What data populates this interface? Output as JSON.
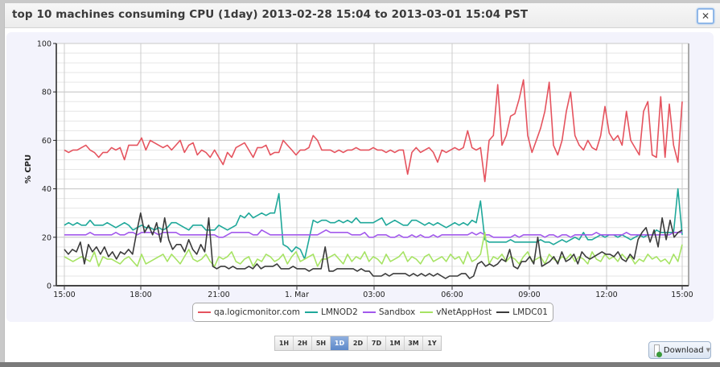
{
  "dialog": {
    "title": "top 10 machines consuming CPU (1day) 2013-02-28 15:04 to 2013-03-01 15:04 PST",
    "close_label": "✕"
  },
  "chart_data": {
    "type": "line",
    "title": "top 10 machines consuming CPU (1day) 2013-02-28 15:04 to 2013-03-01 15:04 PST",
    "xlabel": "",
    "ylabel": "% CPU",
    "ylim": [
      0,
      100
    ],
    "yticks": [
      0,
      20,
      40,
      60,
      80,
      100
    ],
    "xticks": [
      "15:00",
      "18:00",
      "21:00",
      "1. Mar",
      "03:00",
      "06:00",
      "09:00",
      "12:00",
      "15:00"
    ],
    "grid": true,
    "legend_position": "bottom",
    "series": [
      {
        "name": "qa.logicmonitor.com",
        "color": "#e5535e",
        "values": [
          56,
          55,
          56,
          56,
          57,
          58,
          56,
          55,
          53,
          55,
          55,
          57,
          56,
          57,
          52,
          58,
          58,
          58,
          61,
          56,
          60,
          59,
          58,
          57,
          58,
          56,
          58,
          60,
          55,
          58,
          59,
          54,
          56,
          55,
          53,
          56,
          53,
          50,
          55,
          53,
          57,
          58,
          59,
          56,
          53,
          57,
          57,
          58,
          54,
          55,
          55,
          60,
          58,
          56,
          54,
          56,
          56,
          57,
          62,
          60,
          56,
          56,
          56,
          55,
          56,
          55,
          56,
          56,
          57,
          56,
          56,
          56,
          57,
          56,
          56,
          55,
          56,
          55,
          56,
          56,
          46,
          55,
          57,
          55,
          56,
          57,
          55,
          51,
          56,
          55,
          56,
          57,
          56,
          57,
          64,
          57,
          56,
          57,
          43,
          60,
          62,
          83,
          58,
          62,
          70,
          71,
          77,
          85,
          62,
          55,
          60,
          65,
          72,
          84,
          58,
          54,
          60,
          72,
          80,
          62,
          58,
          56,
          60,
          57,
          56,
          62,
          74,
          63,
          60,
          62,
          58,
          72,
          60,
          57,
          54,
          72,
          76,
          54,
          53,
          78,
          53,
          75,
          58,
          51,
          76
        ]
      },
      {
        "name": "LMNOD2",
        "color": "#1fa89a",
        "values": [
          25,
          26,
          25,
          26,
          25,
          25,
          27,
          25,
          25,
          25,
          26,
          25,
          24,
          25,
          26,
          25,
          23,
          24,
          25,
          24,
          24,
          23,
          24,
          23,
          24,
          26,
          26,
          25,
          24,
          23,
          25,
          25,
          25,
          23,
          23,
          23,
          25,
          24,
          23,
          24,
          25,
          29,
          28,
          30,
          28,
          29,
          30,
          29,
          30,
          30,
          38,
          17,
          16,
          14,
          16,
          15,
          11,
          19,
          27,
          26,
          27,
          27,
          26,
          26,
          27,
          26,
          27,
          26,
          28,
          26,
          26,
          26,
          26,
          27,
          28,
          25,
          26,
          27,
          26,
          25,
          25,
          27,
          27,
          26,
          25,
          26,
          25,
          26,
          25,
          24,
          25,
          26,
          25,
          26,
          25,
          27,
          26,
          35,
          19,
          18,
          18,
          18,
          18,
          18,
          19,
          18,
          18,
          18,
          18,
          18,
          18,
          19,
          18,
          18,
          17,
          18,
          19,
          18,
          19,
          20,
          19,
          22,
          19,
          19,
          20,
          21,
          20,
          21,
          21,
          20,
          21,
          20,
          19,
          20,
          21,
          20,
          21,
          21,
          23,
          22,
          22,
          22,
          22,
          40,
          21
        ]
      },
      {
        "name": "Sandbox",
        "color": "#a259ec",
        "values": [
          21,
          21,
          21,
          21,
          21,
          21,
          22,
          21,
          21,
          21,
          21,
          21,
          22,
          21,
          21,
          22,
          22,
          21,
          22,
          22,
          22,
          22,
          21,
          22,
          22,
          22,
          22,
          21,
          21,
          21,
          21,
          21,
          21,
          21,
          21,
          21,
          20,
          20,
          21,
          22,
          22,
          22,
          22,
          22,
          21,
          21,
          23,
          22,
          21,
          21,
          21,
          21,
          21,
          21,
          21,
          21,
          21,
          21,
          21,
          21,
          22,
          23,
          22,
          22,
          22,
          22,
          22,
          21,
          21,
          21,
          22,
          20,
          20,
          21,
          21,
          21,
          20,
          20,
          21,
          20,
          20,
          21,
          20,
          21,
          20,
          20,
          21,
          20,
          21,
          21,
          21,
          21,
          21,
          21,
          21,
          22,
          21,
          22,
          21,
          21,
          20,
          20,
          20,
          20,
          20,
          21,
          20,
          21,
          21,
          21,
          21,
          21,
          20,
          21,
          21,
          20,
          21,
          21,
          20,
          21,
          21,
          21,
          21,
          21,
          22,
          21,
          21,
          21,
          21,
          21,
          21,
          22,
          21,
          21,
          21,
          21,
          21,
          21,
          21,
          21,
          21,
          21,
          22,
          22,
          22
        ]
      },
      {
        "name": "vNetAppHost",
        "color": "#a6e363",
        "values": [
          12,
          11,
          10,
          11,
          12,
          11,
          10,
          14,
          8,
          12,
          11,
          11,
          10,
          9,
          11,
          12,
          10,
          8,
          13,
          9,
          10,
          11,
          12,
          13,
          10,
          13,
          11,
          9,
          12,
          15,
          11,
          10,
          11,
          13,
          10,
          8,
          12,
          11,
          12,
          14,
          10,
          9,
          11,
          12,
          8,
          11,
          10,
          13,
          12,
          10,
          11,
          13,
          9,
          12,
          14,
          10,
          11,
          12,
          13,
          8,
          11,
          11,
          12,
          13,
          11,
          9,
          13,
          10,
          12,
          11,
          14,
          10,
          12,
          11,
          9,
          13,
          10,
          11,
          12,
          14,
          10,
          12,
          11,
          9,
          12,
          13,
          10,
          11,
          12,
          10,
          13,
          11,
          12,
          9,
          14,
          10,
          11,
          13,
          22,
          9,
          12,
          11,
          13,
          10,
          12,
          11,
          9,
          12,
          14,
          10,
          11,
          12,
          9,
          13,
          11,
          10,
          12,
          11,
          13,
          10,
          12,
          11,
          9,
          14,
          11,
          10,
          13,
          11,
          12,
          10,
          13,
          11,
          12,
          9,
          11,
          10,
          13,
          11,
          12,
          10,
          11,
          9,
          13,
          10,
          17
        ]
      },
      {
        "name": "LMDC01",
        "color": "#3b3b3b",
        "values": [
          15,
          13,
          15,
          14,
          18,
          9,
          17,
          14,
          16,
          13,
          16,
          12,
          14,
          11,
          14,
          13,
          15,
          13,
          22,
          30,
          22,
          25,
          21,
          26,
          18,
          28,
          19,
          15,
          17,
          17,
          14,
          19,
          15,
          13,
          17,
          14,
          28,
          8,
          7,
          8,
          8,
          7,
          8,
          7,
          7,
          7,
          8,
          7,
          9,
          7,
          8,
          8,
          8,
          9,
          7,
          7,
          7,
          8,
          7,
          7,
          7,
          6,
          7,
          7,
          7,
          16,
          6,
          6,
          7,
          7,
          7,
          7,
          7,
          6,
          7,
          6,
          6,
          4,
          4,
          4,
          5,
          4,
          5,
          5,
          5,
          5,
          4,
          5,
          4,
          5,
          4,
          5,
          4,
          5,
          4,
          3,
          4,
          4,
          4,
          5,
          5,
          3,
          4,
          9,
          10,
          8,
          9,
          8,
          9,
          11,
          10,
          15,
          8,
          7,
          10,
          10,
          12,
          9,
          20,
          8,
          9,
          10,
          12,
          9,
          14,
          10,
          11,
          13,
          9,
          14,
          12,
          11,
          12,
          13,
          14,
          13,
          13,
          12,
          14,
          11,
          10,
          13,
          11,
          19,
          22,
          24,
          18,
          23,
          16,
          28,
          19,
          27,
          20,
          22,
          23
        ]
      }
    ]
  },
  "range_buttons": [
    "1H",
    "2H",
    "5H",
    "1D",
    "2D",
    "7D",
    "1M",
    "3M",
    "1Y"
  ],
  "range_active": "1D",
  "download": {
    "label": "Download",
    "icon": "document-download-icon"
  }
}
